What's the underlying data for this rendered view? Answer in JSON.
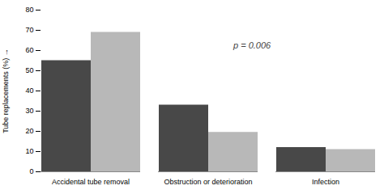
{
  "chart_data": {
    "type": "bar",
    "ylabel": "Tube replacements (%)",
    "categories": [
      "Accidental tube removal",
      "Obstruction or deterioration",
      "Infection"
    ],
    "series": [
      {
        "color": "#484848",
        "values": [
          55,
          33,
          12
        ]
      },
      {
        "color": "#b8b8b8",
        "values": [
          69,
          19.5,
          11
        ]
      }
    ],
    "ylim": [
      0,
      80
    ],
    "yticks": [
      0,
      10,
      20,
      30,
      40,
      50,
      60,
      70,
      80
    ],
    "annotation": "p = 0.006",
    "grid": false
  }
}
